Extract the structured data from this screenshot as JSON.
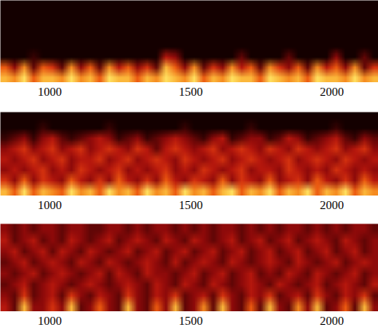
{
  "chart_data": [
    {
      "type": "heatmap",
      "xlim": [
        825,
        2165
      ],
      "xticks": [
        1000,
        1500,
        2000
      ],
      "tick_labels": "x",
      "zlim": [
        0,
        9
      ],
      "z": [
        [
          0,
          0,
          0,
          0,
          0,
          0,
          0,
          0,
          0,
          0,
          0,
          0,
          0,
          0,
          0,
          0,
          0,
          0,
          0,
          0,
          0,
          0,
          0,
          0,
          0,
          0,
          0,
          0,
          0,
          0,
          0,
          0,
          0,
          0,
          0,
          0,
          0,
          0,
          0,
          0
        ],
        [
          0,
          0,
          0,
          0,
          0,
          0,
          0,
          0,
          0,
          0,
          0,
          0,
          0,
          0,
          0,
          0,
          0,
          0,
          0,
          0,
          0,
          0,
          0,
          0,
          0,
          0,
          0,
          0,
          0,
          0,
          0,
          0,
          0,
          0,
          0,
          0,
          0,
          0,
          0,
          0
        ],
        [
          0,
          0,
          0,
          0,
          0,
          0,
          0,
          0,
          0,
          0,
          0,
          0,
          0,
          0,
          0,
          0,
          0,
          0,
          0,
          0,
          0,
          0,
          0,
          0,
          0,
          0,
          0,
          0,
          0,
          0,
          0,
          0,
          0,
          0,
          0,
          0,
          0,
          0,
          0,
          0
        ],
        [
          0,
          0,
          0,
          0,
          0,
          0,
          0,
          0,
          0,
          0,
          0,
          0,
          0,
          0,
          0,
          0,
          0,
          0,
          0,
          0,
          0,
          0,
          0,
          0,
          0,
          0,
          0,
          0,
          0,
          0,
          0,
          0,
          0,
          0,
          0,
          0,
          0,
          0,
          0,
          0
        ],
        [
          0,
          0,
          0,
          0,
          0,
          0,
          0,
          0,
          0,
          0,
          0,
          0,
          0,
          0,
          0,
          0,
          0,
          0,
          0,
          0,
          0,
          0,
          0,
          0,
          0,
          0,
          0,
          0,
          0,
          0,
          0,
          0,
          0,
          0,
          0,
          0,
          0,
          0,
          0,
          0
        ],
        [
          0,
          0,
          0,
          1,
          0,
          0,
          0,
          0,
          0,
          0,
          0,
          0,
          0,
          0,
          0,
          0,
          0,
          4,
          3,
          0,
          0,
          0,
          0,
          0,
          0,
          2,
          0,
          0,
          0,
          0,
          2,
          0,
          0,
          0,
          0,
          3,
          0,
          0,
          2,
          0
        ],
        [
          6,
          3,
          7,
          2,
          6,
          5,
          2,
          7,
          3,
          6,
          2,
          7,
          4,
          6,
          3,
          5,
          2,
          8,
          6,
          3,
          7,
          2,
          5,
          3,
          7,
          4,
          6,
          2,
          7,
          5,
          3,
          6,
          2,
          7,
          4,
          6,
          3,
          7,
          2,
          5
        ],
        [
          8,
          7,
          9,
          6,
          8,
          8,
          7,
          9,
          7,
          8,
          6,
          9,
          8,
          8,
          6,
          8,
          7,
          9,
          8,
          7,
          9,
          6,
          8,
          7,
          9,
          8,
          8,
          6,
          9,
          8,
          7,
          8,
          6,
          9,
          8,
          8,
          7,
          9,
          7,
          8
        ]
      ]
    },
    {
      "type": "heatmap",
      "xlim": [
        825,
        2165
      ],
      "xticks": [
        1000,
        1500,
        2000
      ],
      "tick_labels": "x",
      "zlim": [
        0,
        9
      ],
      "z": [
        [
          0,
          0,
          0,
          0,
          0,
          0,
          0,
          0,
          0,
          0,
          0,
          0,
          0,
          0,
          0,
          0,
          0,
          0,
          0,
          0,
          0,
          0,
          0,
          0,
          0,
          0,
          0,
          0,
          0,
          0,
          0,
          0,
          0,
          0,
          0,
          0,
          0,
          0,
          0,
          0
        ],
        [
          0,
          0,
          0,
          0,
          1,
          0,
          0,
          0,
          0,
          0,
          0,
          1,
          0,
          0,
          0,
          0,
          0,
          0,
          0,
          1,
          0,
          0,
          0,
          0,
          0,
          0,
          1,
          0,
          0,
          0,
          0,
          0,
          0,
          0,
          0,
          1,
          0,
          0,
          0,
          0
        ],
        [
          1,
          2,
          3,
          1,
          3,
          4,
          2,
          1,
          2,
          3,
          4,
          3,
          1,
          2,
          3,
          1,
          2,
          3,
          4,
          3,
          2,
          1,
          3,
          4,
          1,
          2,
          3,
          3,
          1,
          2,
          4,
          3,
          1,
          2,
          3,
          4,
          2,
          1,
          3,
          2
        ],
        [
          3,
          4,
          5,
          3,
          4,
          5,
          3,
          4,
          5,
          3,
          4,
          5,
          4,
          3,
          5,
          4,
          2,
          4,
          5,
          4,
          3,
          4,
          5,
          3,
          4,
          5,
          4,
          3,
          5,
          4,
          3,
          5,
          4,
          3,
          4,
          5,
          3,
          4,
          5,
          3
        ],
        [
          4,
          3,
          4,
          5,
          3,
          4,
          5,
          3,
          4,
          4,
          5,
          3,
          4,
          5,
          3,
          4,
          5,
          4,
          3,
          5,
          4,
          3,
          4,
          5,
          3,
          4,
          5,
          4,
          3,
          4,
          5,
          3,
          4,
          5,
          4,
          3,
          5,
          4,
          3,
          4
        ],
        [
          3,
          4,
          3,
          4,
          5,
          3,
          4,
          3,
          5,
          4,
          3,
          4,
          5,
          3,
          4,
          3,
          4,
          5,
          3,
          4,
          3,
          5,
          4,
          3,
          4,
          5,
          3,
          4,
          4,
          3,
          5,
          4,
          3,
          4,
          3,
          5,
          4,
          3,
          4,
          3
        ],
        [
          5,
          3,
          6,
          3,
          5,
          4,
          3,
          6,
          4,
          3,
          5,
          3,
          6,
          4,
          3,
          5,
          3,
          6,
          4,
          3,
          5,
          4,
          3,
          6,
          3,
          5,
          4,
          3,
          6,
          3,
          4,
          5,
          3,
          6,
          4,
          3,
          5,
          3,
          6,
          4
        ],
        [
          8,
          6,
          9,
          6,
          8,
          7,
          6,
          9,
          7,
          8,
          6,
          9,
          7,
          8,
          6,
          9,
          7,
          8,
          6,
          9,
          7,
          8,
          6,
          8,
          9,
          6,
          8,
          7,
          9,
          6,
          8,
          7,
          9,
          6,
          8,
          7,
          9,
          6,
          8,
          7
        ]
      ]
    },
    {
      "type": "heatmap",
      "xlim": [
        825,
        2165
      ],
      "xticks": [
        1000,
        1500,
        2000
      ],
      "tick_labels": "x",
      "zlim": [
        0,
        9
      ],
      "z": [
        [
          3,
          2,
          3,
          2,
          3,
          3,
          2,
          3,
          3,
          2,
          2,
          3,
          3,
          2,
          3,
          2,
          3,
          3,
          2,
          3,
          2,
          3,
          2,
          3,
          3,
          2,
          3,
          2,
          3,
          2,
          3,
          3,
          2,
          3,
          2,
          3,
          2,
          3,
          3,
          2
        ],
        [
          4,
          2,
          3,
          4,
          2,
          3,
          2,
          4,
          3,
          2,
          3,
          4,
          2,
          3,
          4,
          3,
          2,
          4,
          3,
          2,
          4,
          3,
          2,
          3,
          4,
          2,
          3,
          4,
          2,
          3,
          4,
          2,
          3,
          4,
          3,
          2,
          4,
          3,
          2,
          3
        ],
        [
          3,
          4,
          2,
          3,
          4,
          2,
          4,
          3,
          2,
          4,
          3,
          2,
          3,
          4,
          2,
          3,
          4,
          2,
          3,
          4,
          2,
          3,
          4,
          2,
          3,
          4,
          2,
          3,
          4,
          2,
          3,
          4,
          2,
          3,
          4,
          2,
          3,
          4,
          2,
          3
        ],
        [
          2,
          3,
          4,
          2,
          3,
          4,
          3,
          2,
          4,
          3,
          2,
          4,
          3,
          2,
          3,
          4,
          3,
          2,
          4,
          2,
          3,
          4,
          3,
          2,
          4,
          3,
          2,
          3,
          4,
          3,
          2,
          4,
          3,
          2,
          3,
          4,
          2,
          3,
          4,
          3
        ],
        [
          3,
          2,
          3,
          4,
          2,
          3,
          4,
          3,
          2,
          3,
          4,
          2,
          4,
          3,
          2,
          4,
          3,
          3,
          2,
          3,
          4,
          2,
          3,
          4,
          2,
          3,
          4,
          2,
          3,
          2,
          4,
          3,
          2,
          4,
          3,
          2,
          3,
          4,
          2,
          3
        ],
        [
          2,
          3,
          4,
          2,
          3,
          4,
          3,
          2,
          3,
          4,
          3,
          2,
          3,
          4,
          3,
          2,
          4,
          3,
          2,
          4,
          3,
          2,
          4,
          3,
          2,
          3,
          4,
          3,
          2,
          4,
          3,
          2,
          3,
          4,
          2,
          3,
          4,
          3,
          2,
          4
        ],
        [
          3,
          2,
          5,
          2,
          3,
          4,
          2,
          5,
          3,
          2,
          4,
          3,
          2,
          5,
          3,
          2,
          4,
          3,
          5,
          2,
          3,
          4,
          2,
          5,
          3,
          2,
          4,
          3,
          5,
          2,
          3,
          4,
          2,
          5,
          3,
          2,
          4,
          3,
          5,
          2
        ],
        [
          4,
          2,
          8,
          3,
          3,
          5,
          3,
          8,
          2,
          3,
          6,
          3,
          2,
          8,
          3,
          2,
          6,
          3,
          8,
          2,
          3,
          7,
          2,
          8,
          3,
          2,
          6,
          2,
          8,
          3,
          2,
          7,
          3,
          8,
          2,
          3,
          6,
          2,
          8,
          3
        ]
      ]
    }
  ]
}
